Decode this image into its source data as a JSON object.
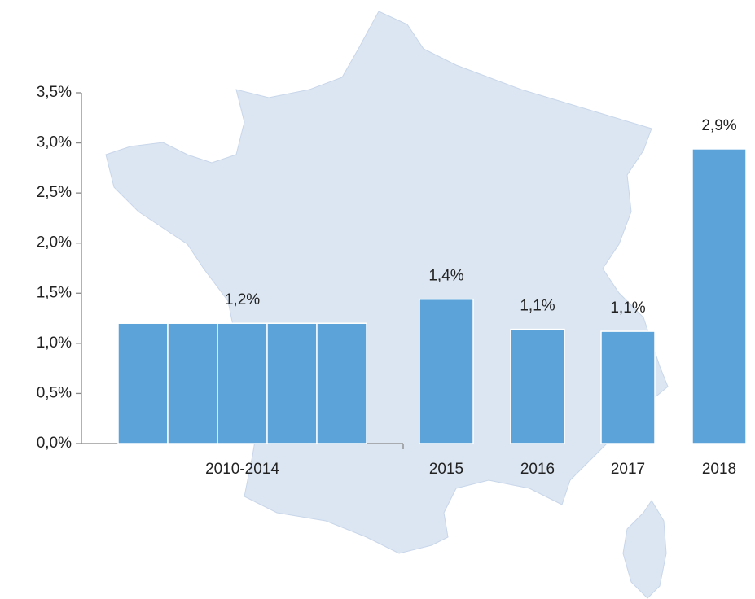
{
  "chart_data": {
    "type": "bar",
    "categories": [
      "2010-2014",
      "2015",
      "2016",
      "2017",
      "2018"
    ],
    "values": [
      [
        1.2,
        1.2,
        1.2,
        1.2,
        1.2
      ],
      1.44,
      1.14,
      1.12,
      2.94
    ],
    "value_labels": [
      "1,2%",
      "1,4%",
      "1,1%",
      "1,1%",
      "2,9%"
    ],
    "color": "#5ba3d9",
    "ylim": [
      0,
      3.5
    ],
    "yticks": [
      {
        "value": 0,
        "label": "0,0%"
      },
      {
        "value": 0.5,
        "label": "0,5%"
      },
      {
        "value": 1,
        "label": "1,0%"
      },
      {
        "value": 1.5,
        "label": "1,5%"
      },
      {
        "value": 2,
        "label": "2,0%"
      },
      {
        "value": 2.5,
        "label": "2,5%"
      },
      {
        "value": 3,
        "label": "3,0%"
      },
      {
        "value": 3.5,
        "label": "3,5%"
      }
    ]
  }
}
